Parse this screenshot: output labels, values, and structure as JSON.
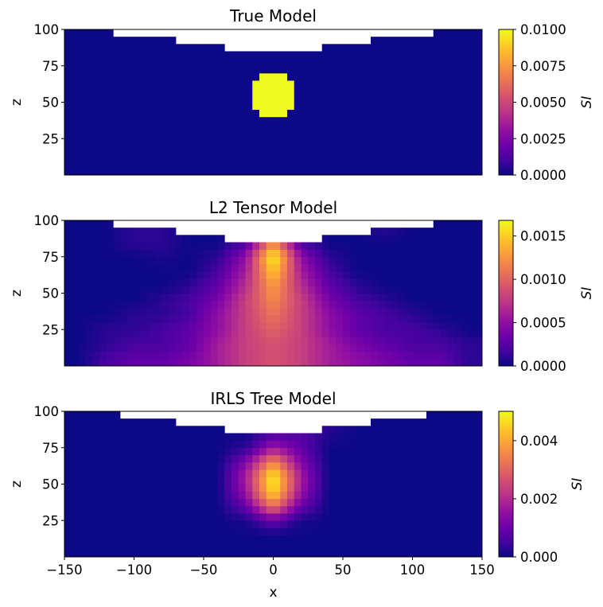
{
  "chart_data": [
    {
      "type": "heatmap",
      "title": "True Model",
      "xlabel": "",
      "ylabel": "z",
      "xlim": [
        -150,
        150
      ],
      "ylim": [
        0,
        100
      ],
      "yticks": [
        "25",
        "50",
        "75",
        "100"
      ],
      "xticks": [],
      "colormap": "plasma",
      "colorbar": {
        "label": "SI",
        "range": [
          0,
          0.01
        ],
        "ticks": [
          "0.0000",
          "0.0025",
          "0.0050",
          "0.0075",
          "0.0100"
        ]
      },
      "topography": [
        {
          "x_abs_below": 35,
          "z_top": 86
        },
        {
          "x_abs_below": 70,
          "z_top": 91
        },
        {
          "x_abs_below": 113,
          "z_top": 96
        }
      ],
      "background_value": 0,
      "anomaly": {
        "shape": "sphere",
        "center": [
          0,
          55
        ],
        "radius": 15,
        "value": 0.01
      }
    },
    {
      "type": "heatmap",
      "title": "L2 Tensor Model",
      "xlabel": "",
      "ylabel": "z",
      "xlim": [
        -150,
        150
      ],
      "ylim": [
        0,
        100
      ],
      "yticks": [
        "25",
        "50",
        "75",
        "100"
      ],
      "xticks": [],
      "colormap": "plasma",
      "colorbar": {
        "label": "SI",
        "range": [
          0,
          0.00168
        ],
        "ticks": [
          "0.0000",
          "0.0005",
          "0.0010",
          "0.0015"
        ]
      },
      "topography": [
        {
          "x_abs_below": 35,
          "z_top": 86
        },
        {
          "x_abs_below": 70,
          "z_top": 91
        },
        {
          "x_abs_below": 113,
          "z_top": 96
        }
      ],
      "grid_x": [
        -140,
        -120,
        -100,
        -80,
        -60,
        -40,
        -20,
        0,
        20,
        40,
        60,
        80,
        100,
        120,
        140
      ],
      "grid_z": [
        95,
        85,
        75,
        65,
        55,
        45,
        35,
        25,
        15,
        5
      ],
      "values": [
        [
          0,
          0,
          0.0001,
          0.0001,
          0,
          0,
          0,
          0,
          0,
          0,
          0,
          0.0001,
          0,
          0,
          0
        ],
        [
          0,
          0,
          0.0001,
          0.0001,
          0,
          0,
          0.0002,
          0.0012,
          0.0002,
          0,
          0,
          0,
          0,
          0,
          0
        ],
        [
          0,
          0,
          0,
          5e-05,
          0,
          0.0001,
          0.0005,
          0.0017,
          0.0005,
          0.0001,
          0,
          0,
          0,
          0,
          0
        ],
        [
          0,
          0,
          0,
          0,
          0,
          0.0002,
          0.0006,
          0.0015,
          0.0006,
          0.0002,
          0,
          0,
          0,
          0,
          0
        ],
        [
          0,
          0,
          0,
          0,
          0.0001,
          0.0003,
          0.0007,
          0.0013,
          0.0007,
          0.0003,
          0.0001,
          0,
          0,
          0,
          0
        ],
        [
          0,
          0,
          0,
          0.0001,
          0.0002,
          0.0004,
          0.0008,
          0.0012,
          0.0008,
          0.0004,
          0.0002,
          0.0001,
          0,
          0,
          0
        ],
        [
          0,
          0,
          0.0001,
          0.0001,
          0.0002,
          0.0005,
          0.0008,
          0.0011,
          0.0008,
          0.0005,
          0.0003,
          0.0002,
          0.0001,
          0,
          0
        ],
        [
          0,
          0.0001,
          0.0001,
          0.0002,
          0.0003,
          0.0005,
          0.0008,
          0.001,
          0.0008,
          0.0005,
          0.0003,
          0.0002,
          0.0002,
          0.0001,
          0
        ],
        [
          0,
          0.0001,
          0.0002,
          0.0002,
          0.0003,
          0.0006,
          0.0008,
          0.0009,
          0.0008,
          0.0006,
          0.0004,
          0.0003,
          0.0002,
          0.0002,
          0.0001
        ],
        [
          0,
          0.0002,
          0.0003,
          0.0003,
          0.0004,
          0.0006,
          0.0008,
          0.0009,
          0.0008,
          0.0006,
          0.0005,
          0.0004,
          0.0003,
          0.0003,
          0.0001
        ]
      ]
    },
    {
      "type": "heatmap",
      "title": "IRLS Tree Model",
      "xlabel": "x",
      "ylabel": "z",
      "xlim": [
        -150,
        150
      ],
      "ylim": [
        0,
        100
      ],
      "yticks": [
        "25",
        "50",
        "75",
        "100"
      ],
      "xticks": [
        "−150",
        "−100",
        "−50",
        "0",
        "50",
        "100",
        "150"
      ],
      "colormap": "plasma",
      "colorbar": {
        "label": "SI",
        "range": [
          0,
          0.00501
        ],
        "ticks": [
          "0.000",
          "0.002",
          "0.004"
        ]
      },
      "topography": [
        {
          "x_abs_below": 35,
          "z_top": 86
        },
        {
          "x_abs_below": 70,
          "z_top": 91
        },
        {
          "x_abs_below": 110,
          "z_top": 96
        }
      ],
      "grid_x": [
        -140,
        -120,
        -100,
        -80,
        -60,
        -40,
        -20,
        0,
        20,
        40,
        60,
        80,
        100,
        120,
        140
      ],
      "grid_z": [
        95,
        85,
        75,
        65,
        55,
        45,
        35,
        25,
        15,
        5
      ],
      "values": [
        [
          0,
          0,
          0,
          0,
          0,
          0,
          0,
          0,
          0,
          0.0004,
          0,
          0,
          0,
          0,
          0
        ],
        [
          0,
          0,
          0,
          0,
          0,
          0,
          0,
          0.0006,
          0.0007,
          0.0002,
          0,
          0,
          0,
          0,
          0
        ],
        [
          0,
          0,
          0,
          0,
          0,
          0,
          0.0003,
          0.0017,
          0.0009,
          0,
          0,
          0,
          0,
          0,
          0
        ],
        [
          0,
          0,
          0,
          0,
          0,
          0,
          0.0013,
          0.0037,
          0.0013,
          0,
          0,
          0,
          0,
          0,
          0
        ],
        [
          0,
          0,
          0,
          0,
          0,
          0,
          0.0018,
          0.005,
          0.0018,
          0,
          0,
          0,
          0,
          0,
          0
        ],
        [
          0,
          0,
          0,
          0,
          0,
          0,
          0.0016,
          0.0048,
          0.0016,
          0,
          0,
          0,
          0,
          0,
          0
        ],
        [
          0,
          0,
          0,
          0,
          0,
          0,
          0.001,
          0.0033,
          0.001,
          0,
          0,
          0,
          0,
          0,
          0
        ],
        [
          0,
          0,
          0,
          0,
          0,
          0,
          0.0001,
          0.001,
          0.0001,
          0,
          0,
          0,
          0,
          0,
          0
        ],
        [
          0,
          0,
          0,
          0,
          0,
          0,
          0,
          0,
          0,
          0,
          0,
          0,
          0,
          0,
          0
        ],
        [
          0,
          0,
          0,
          0,
          0,
          0,
          0,
          0,
          0,
          0,
          0,
          0,
          0,
          0,
          0
        ]
      ]
    }
  ]
}
